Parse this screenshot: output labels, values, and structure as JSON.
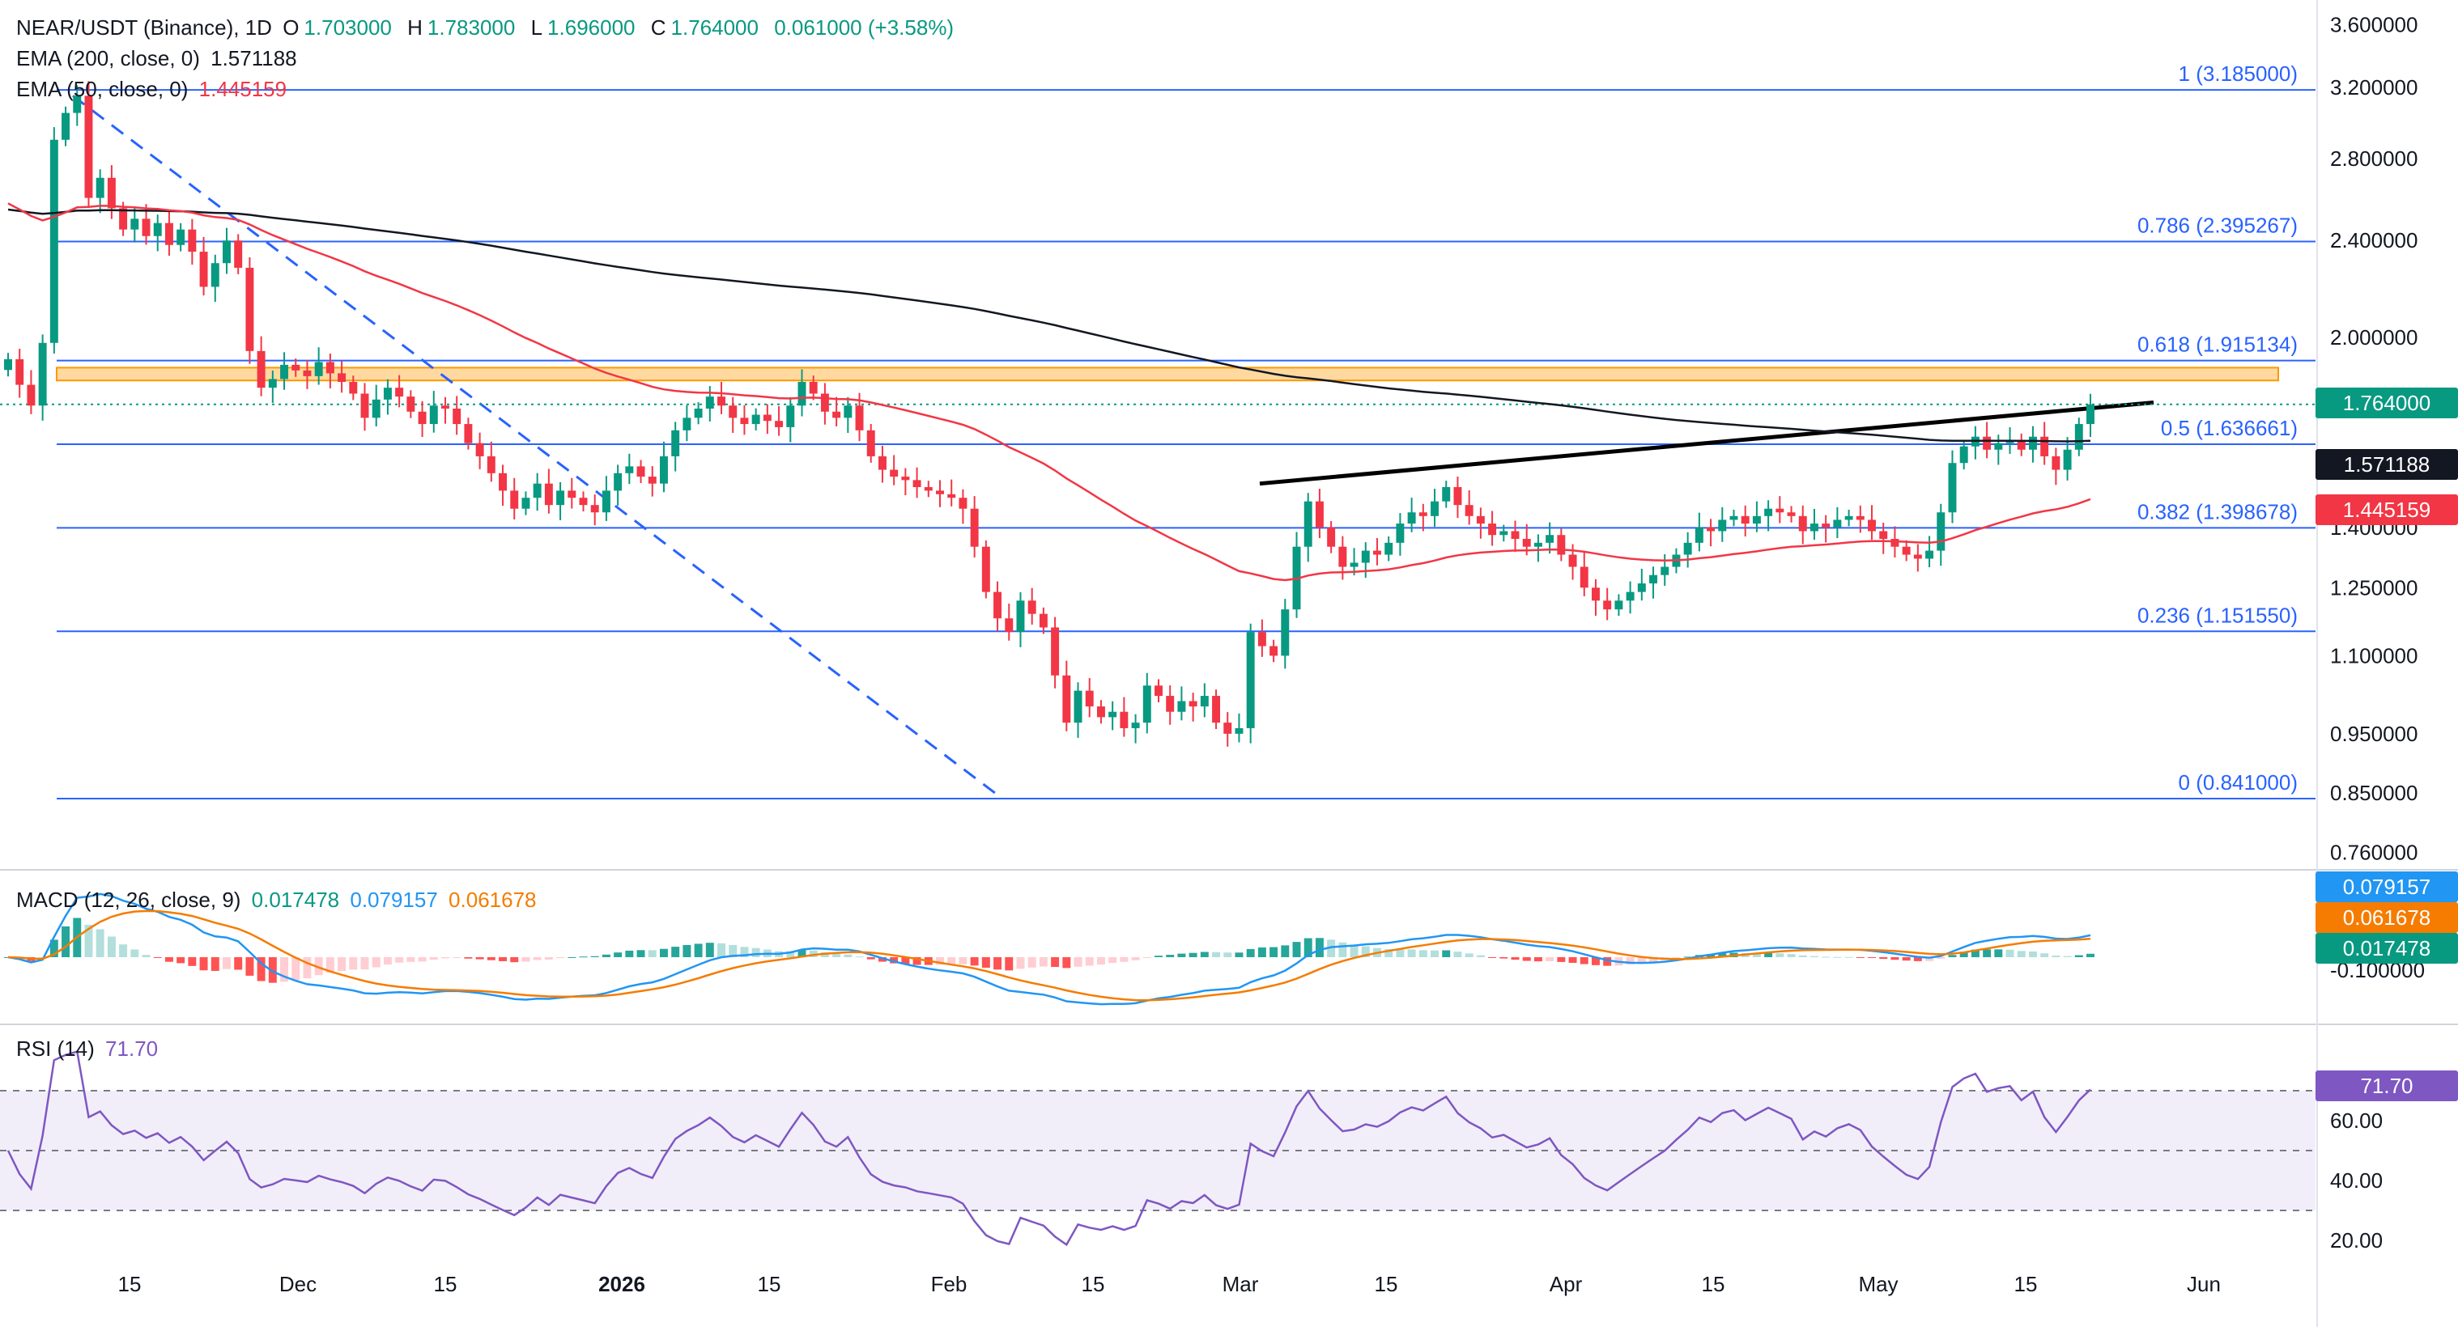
{
  "header": {
    "symbol": "NEAR/USDT (Binance), 1D",
    "o_label": "O",
    "o": "1.703000",
    "h_label": "H",
    "h": "1.783000",
    "l_label": "L",
    "l": "1.696000",
    "c_label": "C",
    "c": "1.764000",
    "change": "0.061000 (+3.58%)"
  },
  "ema200": {
    "label": "EMA (200, close, 0)",
    "value": "1.571188",
    "color": "#131722"
  },
  "ema50": {
    "label": "EMA (50, close, 0)",
    "value": "1.445159",
    "color": "#f23645"
  },
  "macd": {
    "label": "MACD (12, 26, close, 9)",
    "hist": "0.017478",
    "macd": "0.079157",
    "signal": "0.061678",
    "hist_color": "#089981",
    "macd_color": "#2196f3",
    "signal_color": "#f57c00"
  },
  "rsi": {
    "label": "RSI (14)",
    "value": "71.70",
    "color": "#7e57c2"
  },
  "price_tags": {
    "last": "1.764000",
    "ema200": "1.571188",
    "ema50": "1.445159",
    "macd": "0.079157",
    "signal": "0.061678",
    "hist": "0.017478",
    "rsi": "71.70"
  },
  "chart_data": {
    "type": "candlestick",
    "title": "NEAR/USDT (Binance), 1D",
    "price_axis": {
      "ticks": [
        "3.600000",
        "3.200000",
        "2.800000",
        "2.400000",
        "2.000000",
        "1.400000",
        "1.250000",
        "1.100000",
        "0.950000",
        "0.850000",
        "0.760000"
      ],
      "scale": "log"
    },
    "macd_axis": {
      "ticks": [
        "-0.100000"
      ]
    },
    "rsi_axis": {
      "ticks": [
        "60.00",
        "40.00",
        "20.00"
      ],
      "upper_band": 70,
      "lower_band": 30
    },
    "x_ticks": [
      "15",
      "Dec",
      "15",
      "2026",
      "15",
      "Feb",
      "15",
      "Mar",
      "15",
      "Apr",
      "15",
      "May",
      "15",
      "Jun"
    ],
    "fibonacci": [
      {
        "label": "1 (3.185000)",
        "value": 3.185
      },
      {
        "label": "0.786 (2.395267)",
        "value": 2.395267
      },
      {
        "label": "0.618 (1.915134)",
        "value": 1.915134
      },
      {
        "label": "0.5 (1.636661)",
        "value": 1.636661
      },
      {
        "label": "0.382 (1.398678)",
        "value": 1.398678
      },
      {
        "label": "0.236 (1.151550)",
        "value": 1.15155
      },
      {
        "label": "0 (0.841000)",
        "value": 0.841
      }
    ],
    "resistance_zone": [
      1.845,
      1.89
    ],
    "last_close": 1.764,
    "candles_close": [
      1.92,
      1.83,
      1.76,
      1.98,
      2.9,
      3.05,
      3.15,
      2.6,
      2.7,
      2.55,
      2.45,
      2.5,
      2.42,
      2.48,
      2.38,
      2.45,
      2.35,
      2.2,
      2.3,
      2.4,
      2.28,
      1.95,
      1.82,
      1.85,
      1.9,
      1.88,
      1.86,
      1.91,
      1.87,
      1.84,
      1.8,
      1.72,
      1.78,
      1.82,
      1.79,
      1.74,
      1.7,
      1.76,
      1.75,
      1.7,
      1.64,
      1.6,
      1.55,
      1.5,
      1.45,
      1.48,
      1.52,
      1.46,
      1.5,
      1.48,
      1.46,
      1.44,
      1.5,
      1.55,
      1.57,
      1.54,
      1.52,
      1.6,
      1.68,
      1.72,
      1.75,
      1.79,
      1.76,
      1.72,
      1.7,
      1.73,
      1.71,
      1.69,
      1.76,
      1.84,
      1.8,
      1.74,
      1.72,
      1.76,
      1.68,
      1.6,
      1.56,
      1.54,
      1.53,
      1.51,
      1.5,
      1.49,
      1.48,
      1.45,
      1.35,
      1.24,
      1.18,
      1.15,
      1.22,
      1.19,
      1.16,
      1.06,
      0.97,
      1.03,
      1.0,
      0.98,
      0.99,
      0.96,
      0.97,
      1.04,
      1.02,
      0.99,
      1.01,
      1.0,
      1.02,
      0.97,
      0.95,
      0.96,
      1.15,
      1.12,
      1.1,
      1.2,
      1.35,
      1.47,
      1.4,
      1.35,
      1.3,
      1.31,
      1.34,
      1.33,
      1.36,
      1.41,
      1.44,
      1.43,
      1.47,
      1.51,
      1.46,
      1.43,
      1.41,
      1.38,
      1.39,
      1.37,
      1.35,
      1.36,
      1.38,
      1.33,
      1.3,
      1.25,
      1.22,
      1.2,
      1.22,
      1.24,
      1.26,
      1.28,
      1.3,
      1.33,
      1.36,
      1.4,
      1.39,
      1.42,
      1.43,
      1.41,
      1.43,
      1.45,
      1.44,
      1.43,
      1.39,
      1.41,
      1.4,
      1.42,
      1.43,
      1.42,
      1.39,
      1.37,
      1.35,
      1.33,
      1.32,
      1.34,
      1.44,
      1.58,
      1.63,
      1.66,
      1.62,
      1.64,
      1.65,
      1.62,
      1.66,
      1.6,
      1.56,
      1.62,
      1.7,
      1.764
    ]
  }
}
